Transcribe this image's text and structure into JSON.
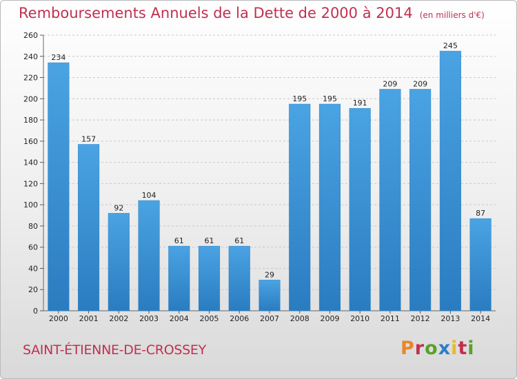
{
  "title": "Remboursements Annuels de la Dette de 2000 à 2014",
  "unit_note": "(en milliers d'€)",
  "commune": "SAINT-ÉTIENNE-DE-CROSSEY",
  "logo": {
    "text": "Proxiti",
    "colors": [
      "#e8872a",
      "#c0304f",
      "#5aa02c",
      "#2a7ec8",
      "#e8b82a",
      "#c0304f",
      "#5aa02c"
    ]
  },
  "colors": {
    "bar": "#4aa3e3",
    "bar_dark": "#2a7cc0",
    "title": "#c0304f"
  },
  "chart_data": {
    "type": "bar",
    "title": "Remboursements Annuels de la Dette de 2000 à 2014",
    "categories": [
      "2000",
      "2001",
      "2002",
      "2003",
      "2004",
      "2005",
      "2006",
      "2007",
      "2008",
      "2009",
      "2010",
      "2011",
      "2012",
      "2013",
      "2014"
    ],
    "values": [
      234,
      157,
      92,
      104,
      61,
      61,
      61,
      29,
      195,
      195,
      191,
      209,
      209,
      245,
      87
    ],
    "ylim": [
      0,
      260
    ],
    "yticks": [
      0,
      20,
      40,
      60,
      80,
      100,
      120,
      140,
      160,
      180,
      200,
      220,
      240,
      260
    ],
    "grid": true
  }
}
